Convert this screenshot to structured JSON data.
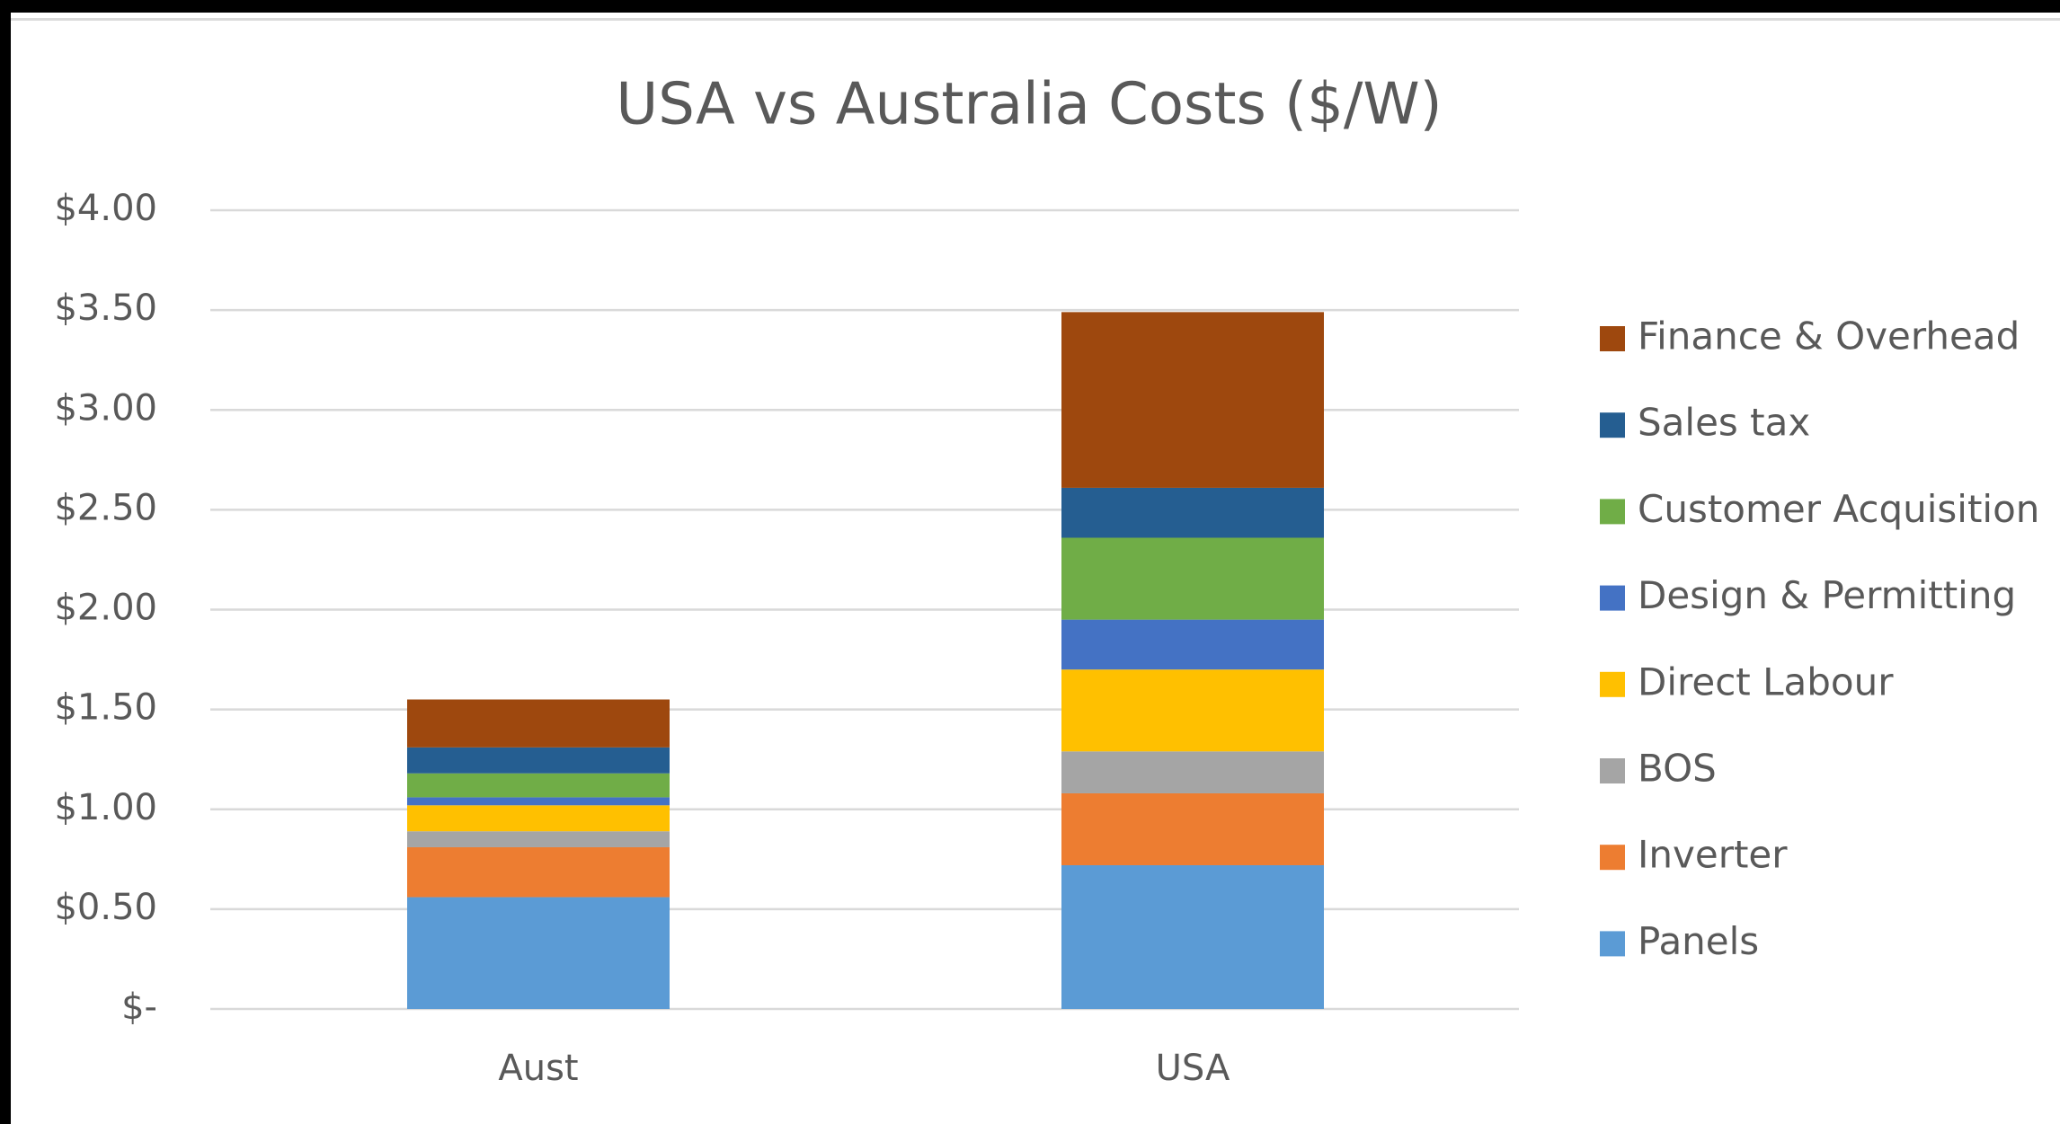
{
  "chart_data": {
    "type": "stacked_bar",
    "title": "USA vs Australia Costs ($/W)",
    "categories": [
      "Aust",
      "USA"
    ],
    "series": [
      {
        "name": "Panels",
        "color": "#5b9bd5",
        "values": [
          0.56,
          0.72
        ]
      },
      {
        "name": "Inverter",
        "color": "#ed7d31",
        "values": [
          0.25,
          0.36
        ]
      },
      {
        "name": "BOS",
        "color": "#a5a5a5",
        "values": [
          0.08,
          0.21
        ]
      },
      {
        "name": "Direct Labour",
        "color": "#ffc000",
        "values": [
          0.13,
          0.41
        ]
      },
      {
        "name": "Design & Permitting",
        "color": "#4472c4",
        "values": [
          0.04,
          0.25
        ]
      },
      {
        "name": "Customer Acquisition",
        "color": "#70ad47",
        "values": [
          0.12,
          0.41
        ]
      },
      {
        "name": "Sales tax",
        "color": "#255e91",
        "values": [
          0.13,
          0.25
        ]
      },
      {
        "name": "Finance & Overhead",
        "color": "#9e480e",
        "values": [
          0.24,
          0.88
        ]
      }
    ],
    "ylim": [
      0,
      4
    ],
    "yticks": [
      {
        "value": 0,
        "label": "$-"
      },
      {
        "value": 0.5,
        "label": "$0.50"
      },
      {
        "value": 1,
        "label": "$1.00"
      },
      {
        "value": 1.5,
        "label": "$1.50"
      },
      {
        "value": 2,
        "label": "$2.00"
      },
      {
        "value": 2.5,
        "label": "$2.50"
      },
      {
        "value": 3,
        "label": "$3.00"
      },
      {
        "value": 3.5,
        "label": "$3.50"
      },
      {
        "value": 4,
        "label": "$4.00"
      }
    ],
    "grid": true,
    "legend": "right"
  }
}
